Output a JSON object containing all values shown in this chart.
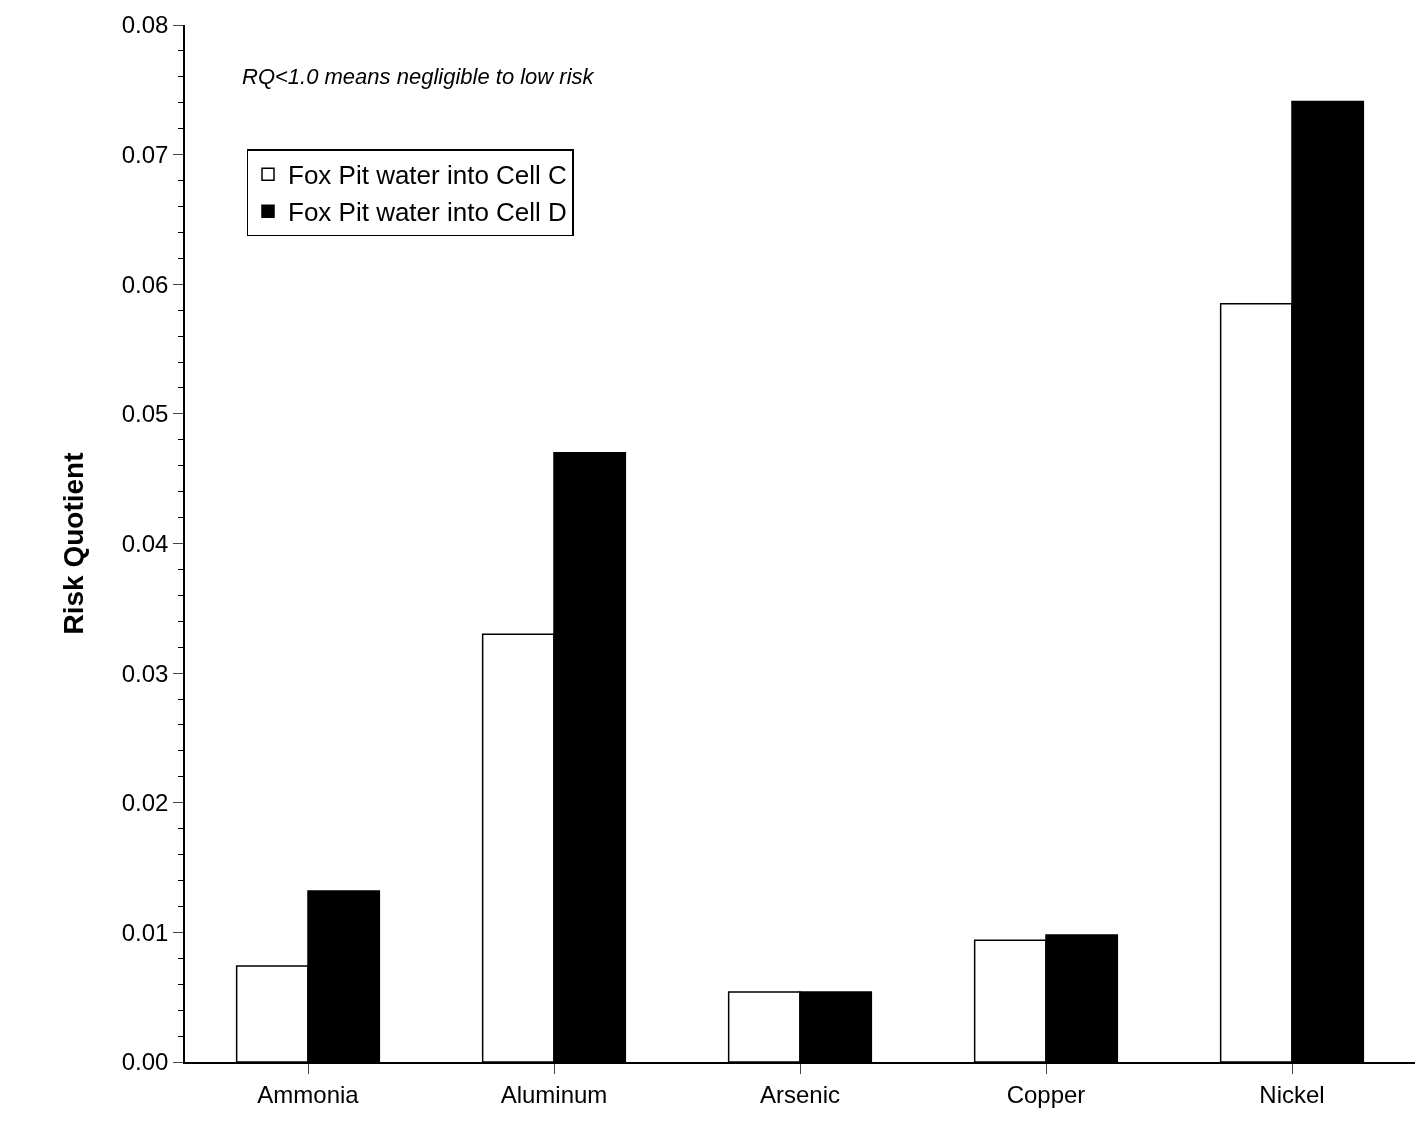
{
  "chart_data": {
    "type": "bar",
    "ylabel": "Risk Quotient",
    "categories": [
      "Ammonia",
      "Aluminum",
      "Arsenic",
      "Copper",
      "Nickel"
    ],
    "series": [
      {
        "name": "Fox Pit water into Cell C",
        "color": "#ffffff",
        "values": [
          0.0074,
          0.033,
          0.0054,
          0.0094,
          0.0585
        ]
      },
      {
        "name": "Fox Pit water into Cell D",
        "color": "#000000",
        "values": [
          0.0132,
          0.047,
          0.0054,
          0.0098,
          0.0741
        ]
      }
    ],
    "ylim": [
      0,
      0.08
    ],
    "yticks": [
      {
        "value": 0,
        "label": "0.00"
      },
      0.01,
      0.02,
      0.03,
      0.04,
      0.05,
      0.06,
      0.07,
      0.08
    ],
    "annotations": [
      "RQ<1.0 means negligible to low risk"
    ],
    "legend": "top left"
  }
}
